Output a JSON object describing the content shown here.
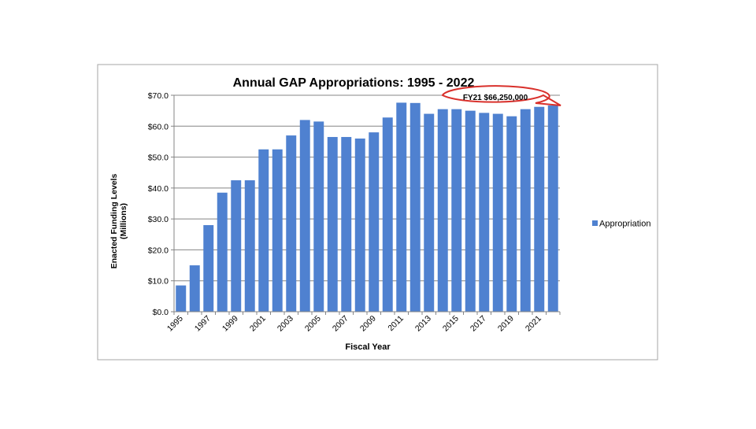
{
  "chart_data": {
    "type": "bar",
    "title": "Annual GAP Appropriations: 1995 - 2022",
    "xlabel": "Fiscal Year",
    "ylabel": "Enacted Funding Levels",
    "ylabel2": "(Millions)",
    "ylim": [
      0,
      70
    ],
    "yticks": [
      "$0.0",
      "$10.0",
      "$20.0",
      "$30.0",
      "$40.0",
      "$50.0",
      "$60.0",
      "$70.0"
    ],
    "ytick_values": [
      0,
      10,
      20,
      30,
      40,
      50,
      60,
      70
    ],
    "categories": [
      "1995",
      "1996",
      "1997",
      "1998",
      "1999",
      "2000",
      "2001",
      "2002",
      "2003",
      "2004",
      "2005",
      "2006",
      "2007",
      "2008",
      "2009",
      "2010",
      "2011",
      "2012",
      "2013",
      "2014",
      "2015",
      "2016",
      "2017",
      "2018",
      "2019",
      "2020",
      "2021",
      "2022"
    ],
    "xtick_labels": [
      "1995",
      "",
      "1997",
      "",
      "1999",
      "",
      "2001",
      "",
      "2003",
      "",
      "2005",
      "",
      "2007",
      "",
      "2009",
      "",
      "2011",
      "",
      "2013",
      "",
      "2015",
      "",
      "2017",
      "",
      "2019",
      "",
      "2021",
      ""
    ],
    "series": [
      {
        "name": "Appropriation",
        "color": "#4F81D0",
        "values": [
          8.5,
          15.0,
          28.0,
          38.5,
          42.5,
          42.5,
          52.5,
          52.5,
          57.0,
          62.0,
          61.5,
          56.5,
          56.5,
          56.0,
          58.0,
          62.8,
          67.6,
          67.5,
          64.0,
          65.5,
          65.5,
          65.0,
          64.3,
          64.0,
          63.2,
          65.5,
          66.25,
          66.7
        ]
      }
    ],
    "grid": true,
    "legend": "right",
    "callout": "FY21 $66,250,000",
    "callout_color": "#D9302B"
  }
}
